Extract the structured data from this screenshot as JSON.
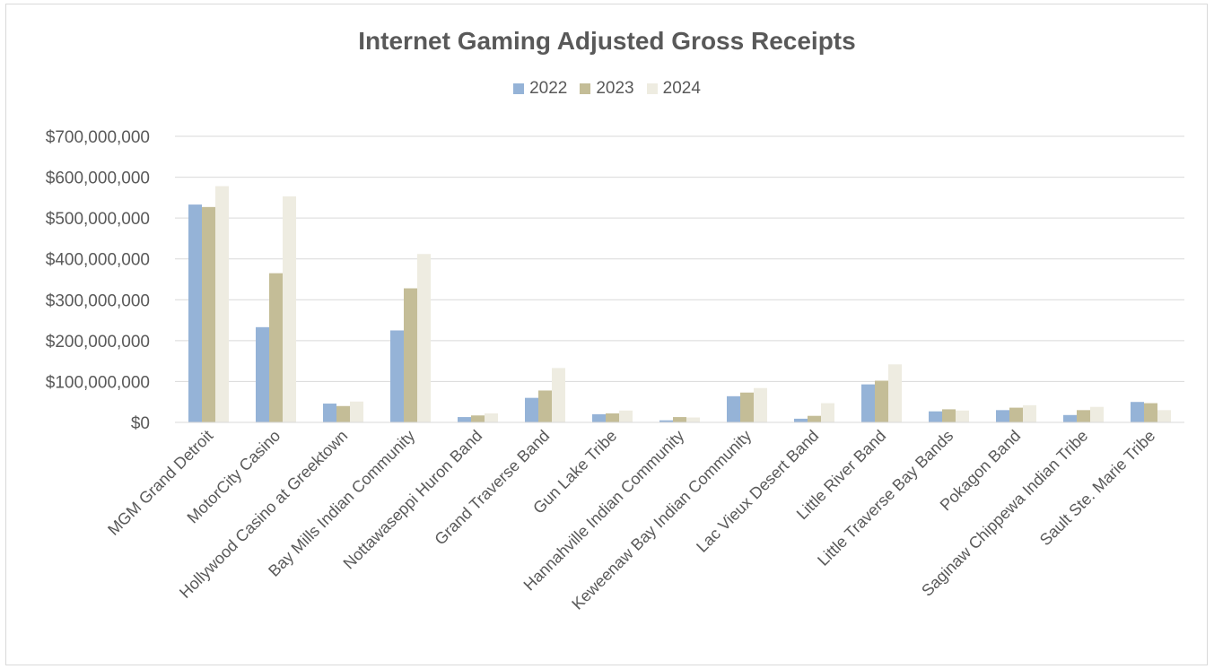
{
  "chart_data": {
    "type": "bar",
    "title": "Internet Gaming Adjusted Gross Receipts",
    "xlabel": "",
    "ylabel": "",
    "ylim": [
      0,
      700000000
    ],
    "yticks": [
      "$0",
      "$100,000,000",
      "$200,000,000",
      "$300,000,000",
      "$400,000,000",
      "$500,000,000",
      "$600,000,000",
      "$700,000,000"
    ],
    "grid": true,
    "legend_position": "top",
    "categories": [
      "MGM Grand Detroit",
      "MotorCity Casino",
      "Hollywood Casino at Greektown",
      "Bay Mills Indian Community",
      "Nottawaseppi Huron Band",
      "Grand Traverse Band",
      "Gun Lake Tribe",
      "Hannahville Indian Community",
      "Keweenaw Bay Indian Community",
      "Lac Vieux Desert Band",
      "Little River Band",
      "Little Traverse Bay Bands",
      "Pokagon Band",
      "Saginaw Chippewa Indian Tribe",
      "Sault Ste. Marie Tribe"
    ],
    "series": [
      {
        "name": "2022",
        "color": "#95b3d7",
        "values": [
          533000000,
          233000000,
          46000000,
          225000000,
          13000000,
          60000000,
          20000000,
          5000000,
          64000000,
          9000000,
          93000000,
          27000000,
          30000000,
          18000000,
          50000000
        ]
      },
      {
        "name": "2023",
        "color": "#c4bd97",
        "values": [
          527000000,
          365000000,
          40000000,
          328000000,
          17000000,
          78000000,
          22000000,
          13000000,
          73000000,
          16000000,
          102000000,
          32000000,
          36000000,
          30000000,
          47000000
        ]
      },
      {
        "name": "2024",
        "color": "#eeece1",
        "values": [
          578000000,
          553000000,
          51000000,
          412000000,
          22000000,
          133000000,
          29000000,
          12000000,
          84000000,
          47000000,
          142000000,
          29000000,
          42000000,
          38000000,
          30000000
        ]
      }
    ]
  }
}
